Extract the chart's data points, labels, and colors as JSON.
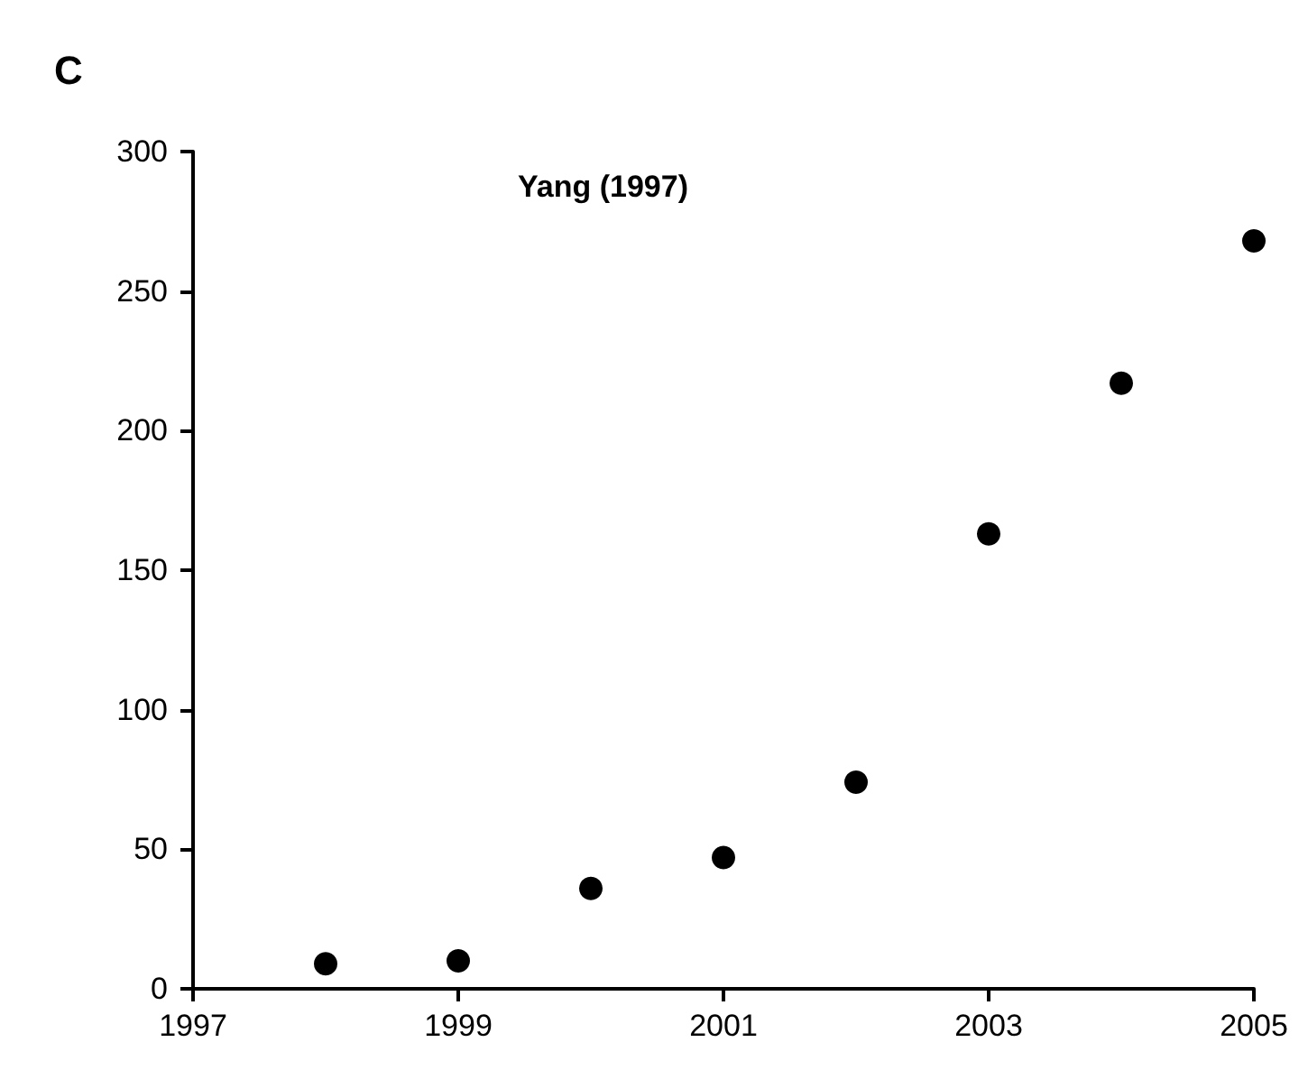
{
  "chart_data": {
    "type": "scatter",
    "title": "Yang (1997)",
    "annotations": [
      "C"
    ],
    "x": [
      1998,
      1999,
      2000,
      2001,
      2002,
      2003,
      2004,
      2005
    ],
    "values": [
      9,
      10,
      36,
      47,
      74,
      163,
      217,
      268
    ],
    "color": "#000000",
    "marker": "circle",
    "xlim": [
      1997,
      2005
    ],
    "xticks": [
      1997,
      1999,
      2001,
      2003,
      2005
    ],
    "ylim": [
      0,
      300
    ],
    "yticks": [
      0,
      50,
      100,
      150,
      200,
      250,
      300
    ],
    "grid": false
  }
}
